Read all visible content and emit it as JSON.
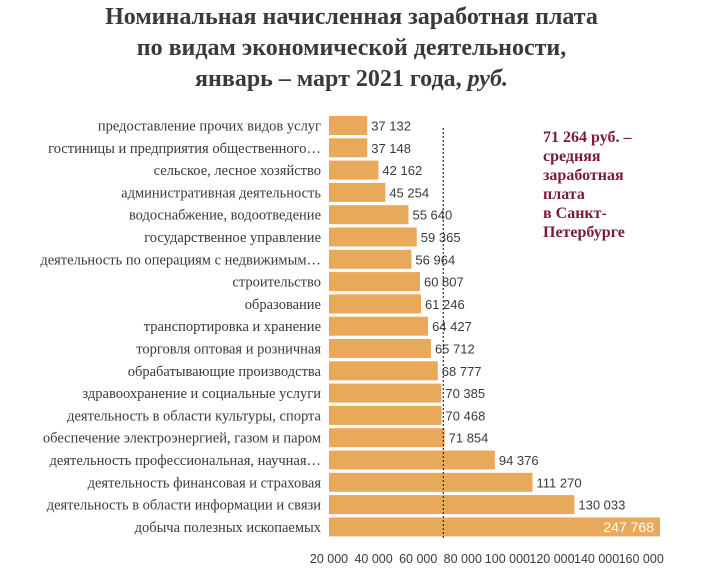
{
  "title": {
    "line1": "Номинальная начисленная заработная плата",
    "line2": "по видам экономической деятельности,",
    "line3_main": "январь – март 2021 года, ",
    "line3_unit": "руб."
  },
  "annotation": {
    "line1": "71 264 руб. –",
    "line2": "средняя",
    "line3": "заработная",
    "line4": "плата",
    "line5": "в Санкт-",
    "line6": "Петербурге"
  },
  "colors": {
    "bar": "#E8A95A",
    "reference_line": "#333333",
    "annotation": "#7a1a3c"
  },
  "chart_data": {
    "type": "bar",
    "orientation": "horizontal",
    "categories": [
      "предоставление прочих видов услуг",
      "гостиницы и предприятия общественного…",
      "сельское, лесное хозяйство",
      "административная деятельность",
      "водоснабжение, водоотведение",
      "государственное управление",
      "деятельность по операциям с недвижимым…",
      "строительство",
      "образование",
      "транспортировка и хранение",
      "торговля оптовая и розничная",
      "обрабатывающие производства",
      "здравоохранение и социальные услуги",
      "деятельность в области культуры, спорта",
      "обеспечение электроэнергией, газом и паром",
      "деятельность профессиональная, научная…",
      "деятельность финансовая и страховая",
      "деятельность в области информации и связи",
      "добыча полезных ископаемых"
    ],
    "values": [
      37132,
      37148,
      42162,
      45254,
      55640,
      59365,
      56964,
      60807,
      61246,
      64427,
      65712,
      68777,
      70385,
      70468,
      71854,
      94376,
      111270,
      130033,
      247768
    ],
    "value_labels": [
      "37 132",
      "37 148",
      "42 162",
      "45 254",
      "55 640",
      "59 365",
      "56 964",
      "60 807",
      "61 246",
      "64 427",
      "65 712",
      "68 777",
      "70 385",
      "70 468",
      "71 854",
      "94 376",
      "111 270",
      "130 033",
      "247 768"
    ],
    "x_ticks": [
      20000,
      40000,
      60000,
      80000,
      100000,
      120000,
      140000,
      160000
    ],
    "x_tick_labels": [
      "20 000",
      "40 000",
      "60 000",
      "80 000",
      "100 000",
      "120 000",
      "140 000",
      "160 000"
    ],
    "xlim": [
      20000,
      160000
    ],
    "reference_value": 71264,
    "grid": false,
    "legend": "none"
  }
}
